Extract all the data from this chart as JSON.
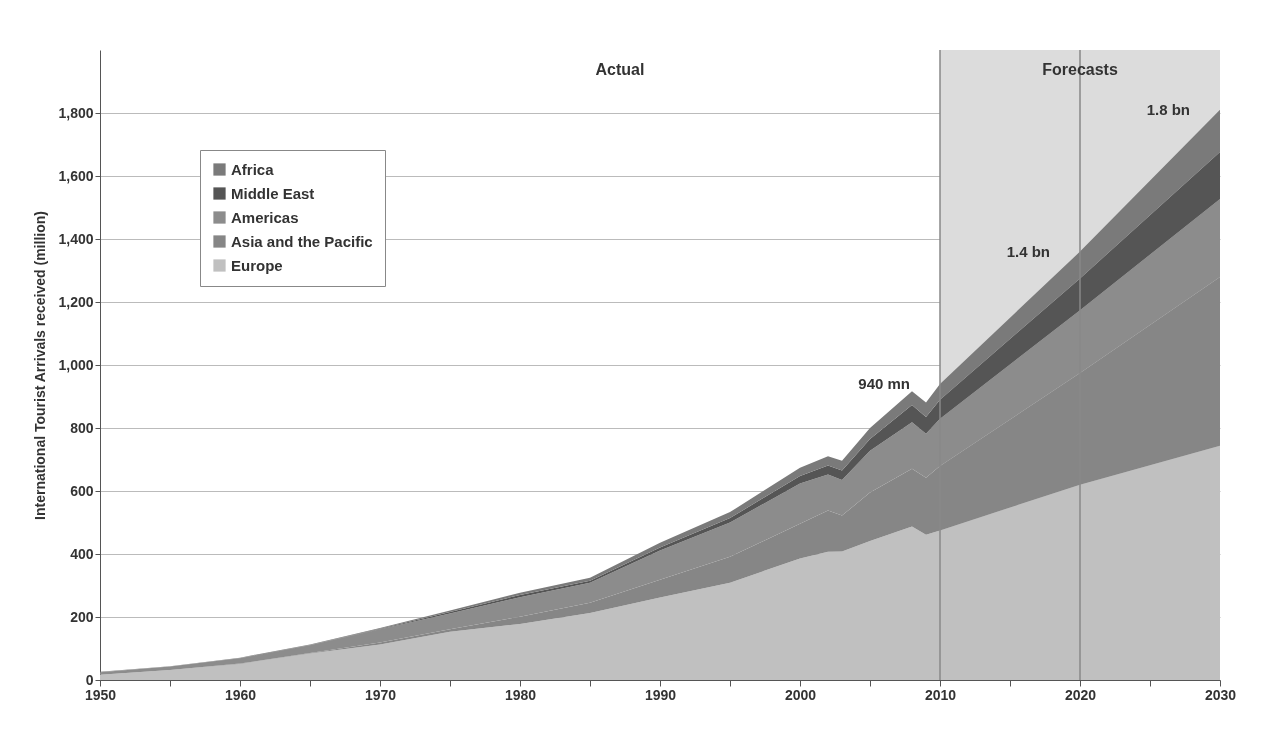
{
  "chart_data": {
    "type": "area",
    "stacked": true,
    "ylabel": "International Tourist Arrivals received (million)",
    "x": [
      1950,
      1955,
      1960,
      1965,
      1970,
      1975,
      1980,
      1985,
      1990,
      1995,
      2000,
      2002,
      2003,
      2005,
      2008,
      2009,
      2010,
      2020,
      2030
    ],
    "series": [
      {
        "name": "Europe",
        "color": "#c0c0c0",
        "values": [
          17,
          32,
          51,
          84,
          113,
          153,
          178,
          213,
          262,
          309,
          386,
          407,
          408,
          441,
          487,
          461,
          475,
          620,
          744
        ]
      },
      {
        "name": "Asia and the Pacific",
        "color": "#868686",
        "values": [
          0,
          0,
          1,
          2,
          6,
          8,
          23,
          32,
          56,
          82,
          110,
          131,
          114,
          154,
          184,
          181,
          204,
          355,
          535
        ]
      },
      {
        "name": "Americas",
        "color": "#8c8c8c",
        "values": [
          8,
          11,
          17,
          24,
          42,
          50,
          62,
          64,
          93,
          109,
          128,
          114,
          113,
          133,
          147,
          140,
          150,
          199,
          248
        ]
      },
      {
        "name": "Middle East",
        "color": "#555555",
        "values": [
          0,
          0,
          1,
          1,
          2,
          5,
          7,
          6,
          10,
          14,
          24,
          29,
          30,
          37,
          55,
          53,
          61,
          101,
          149
        ]
      },
      {
        "name": "Africa",
        "color": "#7a7a7a",
        "values": [
          1,
          1,
          1,
          2,
          2,
          5,
          7,
          10,
          15,
          19,
          26,
          29,
          31,
          35,
          44,
          46,
          50,
          85,
          134
        ]
      }
    ],
    "xlim": [
      1950,
      2030
    ],
    "xticks": [
      1950,
      {
        "value": 1955,
        "label": null
      },
      1960,
      {
        "value": 1965,
        "label": null
      },
      1970,
      {
        "value": 1975,
        "label": null
      },
      1980,
      {
        "value": 1985,
        "label": null
      },
      1990,
      {
        "value": 1995,
        "label": null
      },
      2000,
      {
        "value": 2005,
        "label": null
      },
      2010,
      {
        "value": 2015,
        "label": null
      },
      2020,
      {
        "value": 2025,
        "label": null
      },
      2030
    ],
    "ylim": [
      0,
      2000
    ],
    "yticks": [
      0,
      200,
      400,
      600,
      800,
      {
        "value": 1000,
        "label": "1,000"
      },
      {
        "value": 1200,
        "label": "1,200"
      },
      {
        "value": 1400,
        "label": "1,400"
      },
      {
        "value": 1600,
        "label": "1,600"
      },
      {
        "value": 1800,
        "label": "1,800"
      }
    ],
    "grid": "y",
    "legend": "top left",
    "bands": [
      {
        "axis": "x",
        "from": 2010,
        "to": 2030,
        "label": "Forecasts",
        "color": "#dcdcdc"
      }
    ],
    "ref_lines": [
      {
        "axis": "x",
        "value": 2010,
        "color": "#888888"
      },
      {
        "axis": "x",
        "value": 2020,
        "color": "#888888"
      }
    ],
    "annotations": [
      "Actual",
      {
        "text": "940 mn",
        "x": 2010,
        "y": 940
      },
      {
        "text": "1.4 bn",
        "x": 2020,
        "y": 1360
      },
      {
        "text": "1.8 bn",
        "x": 2030,
        "y": 1809
      }
    ]
  }
}
